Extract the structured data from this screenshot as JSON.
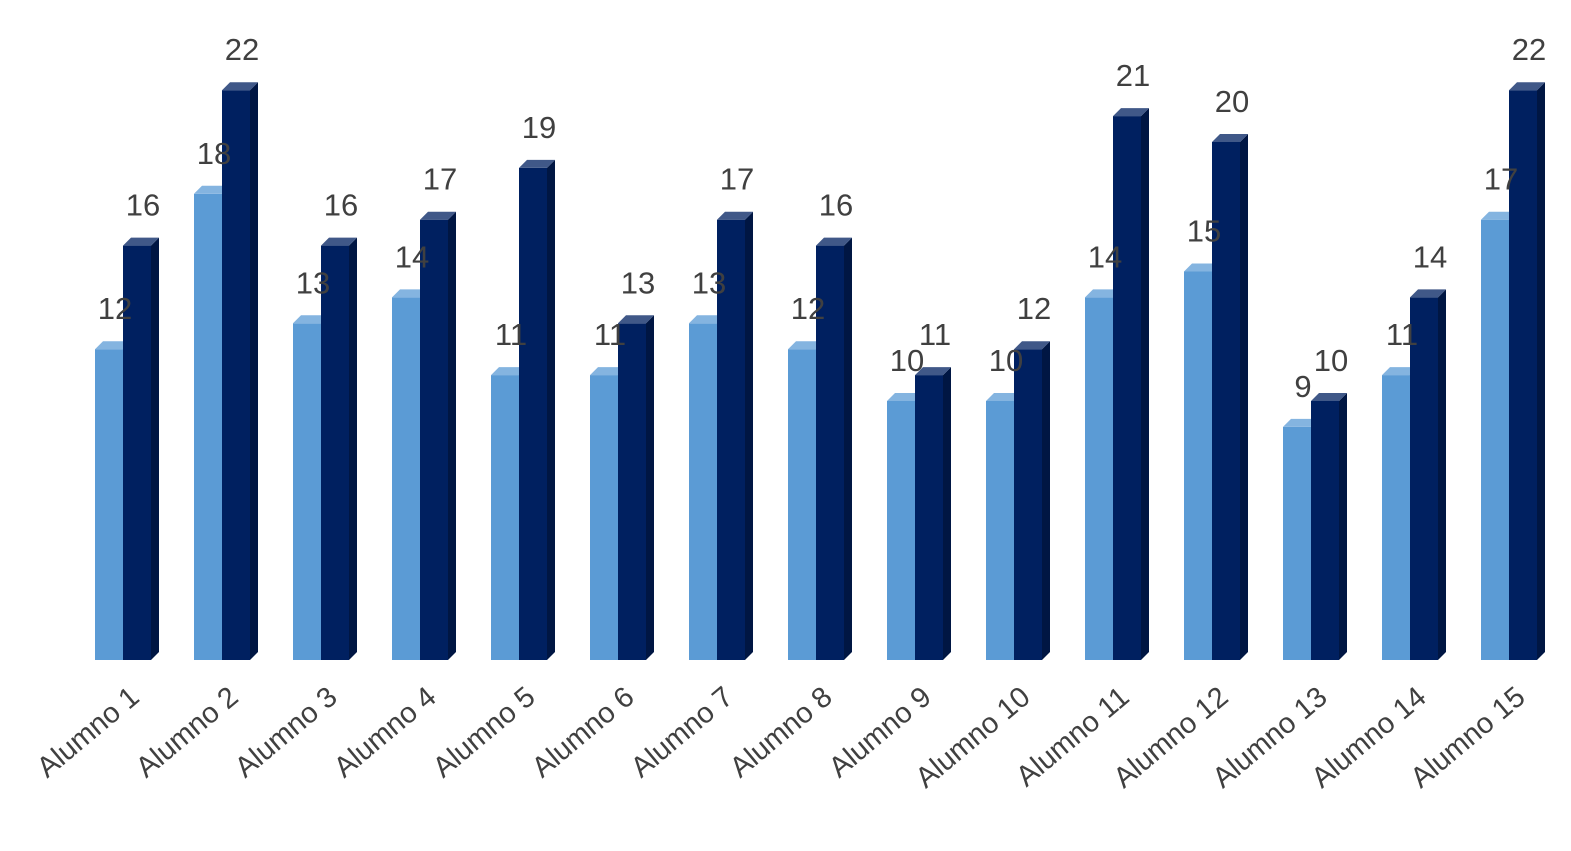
{
  "chart_data": {
    "type": "bar",
    "style": "3d-clustered-column",
    "categories": [
      "Alumno 1",
      "Alumno 2",
      "Alumno 3",
      "Alumno 4",
      "Alumno 5",
      "Alumno 6",
      "Alumno 7",
      "Alumno 8",
      "Alumno 9",
      "Alumno 10",
      "Alumno 11",
      "Alumno 12",
      "Alumno 13",
      "Alumno 14",
      "Alumno 15"
    ],
    "series": [
      {
        "values": [
          12,
          18,
          13,
          14,
          11,
          11,
          13,
          12,
          10,
          10,
          14,
          15,
          9,
          11,
          17
        ],
        "color": "#5B9BD5"
      },
      {
        "values": [
          16,
          22,
          16,
          17,
          19,
          13,
          17,
          16,
          11,
          12,
          21,
          20,
          10,
          14,
          22
        ],
        "color": "#002060"
      }
    ],
    "title": "",
    "xlabel": "",
    "ylabel": "",
    "ylim": [
      0,
      22
    ],
    "grid": false,
    "legend": "none",
    "data_labels": true
  }
}
